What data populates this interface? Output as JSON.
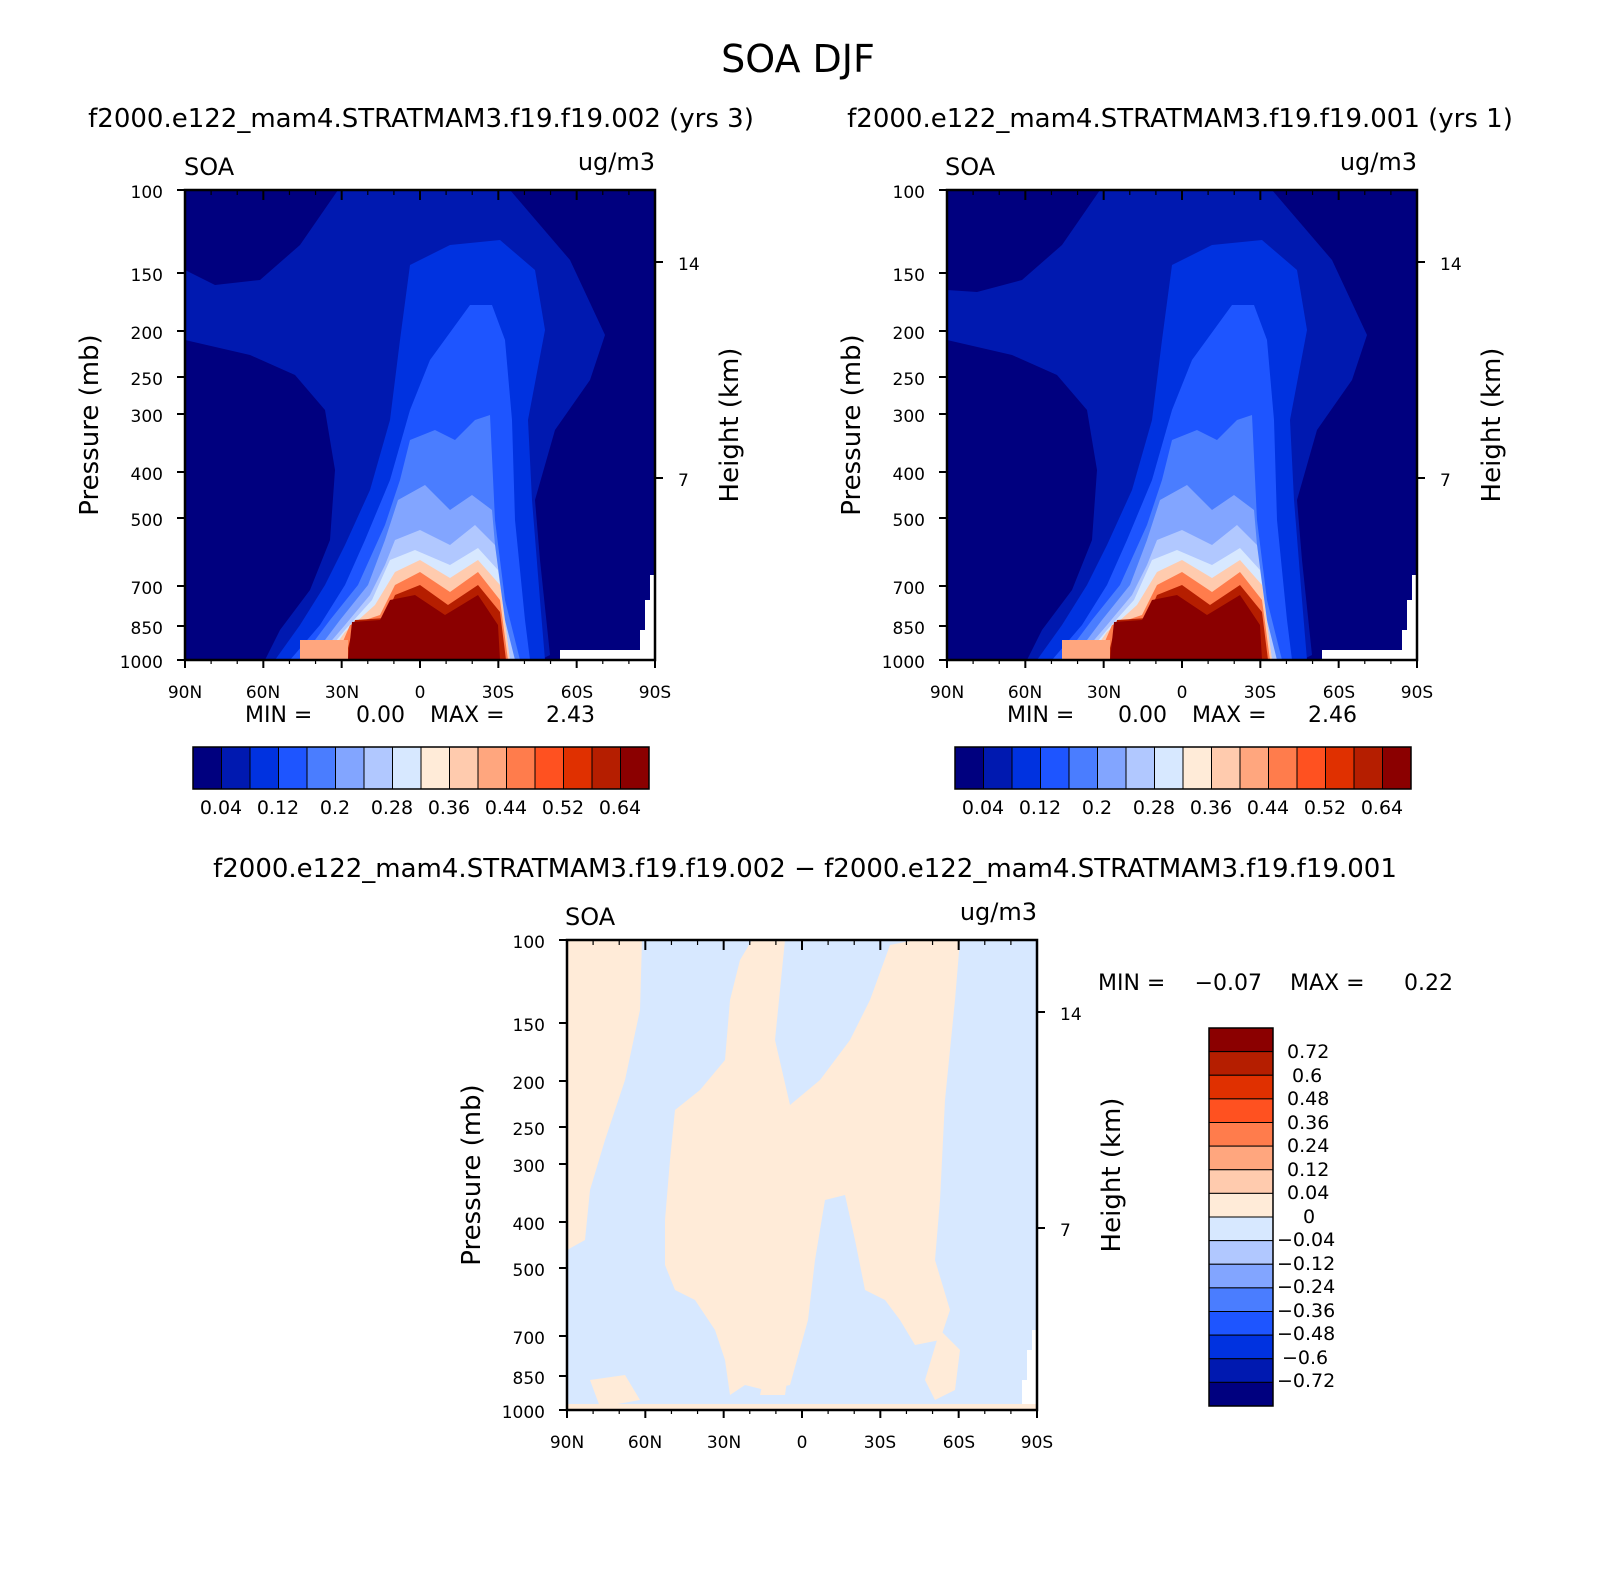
{
  "title": "SOA DJF",
  "colors": {
    "seq": [
      "#00007f",
      "#0019b0",
      "#0032e0",
      "#1e55ff",
      "#4a7dff",
      "#82a5ff",
      "#b1c8ff",
      "#d7e8ff",
      "#ffebd8",
      "#ffcbae",
      "#ffa67e",
      "#ff7c4c",
      "#ff5120",
      "#e03000",
      "#b51e00",
      "#8b0000"
    ],
    "diff": [
      "#00007f",
      "#0019b0",
      "#0032e0",
      "#1e55ff",
      "#4a7dff",
      "#82a5ff",
      "#b1c8ff",
      "#d7e8ff",
      "#ffebd8",
      "#ffcbae",
      "#ffa67e",
      "#ff7c4c",
      "#ff5120",
      "#e03000",
      "#b51e00",
      "#8b0000"
    ]
  },
  "chart_data": [
    {
      "type": "heatmap",
      "subtitle": "f2000.e122_mam4.STRATMAM3.f19.f19.002 (yrs 3)",
      "variable": "SOA",
      "units": "ug/m3",
      "xlabel": "",
      "ylabel": "Pressure (mb)",
      "y2label": "Height (km)",
      "x_ticks": [
        "90N",
        "60N",
        "30N",
        "0",
        "30S",
        "60S",
        "90S"
      ],
      "x_range": [
        90,
        -90
      ],
      "y_ticks": [
        100,
        150,
        200,
        250,
        300,
        400,
        500,
        700,
        850,
        1000
      ],
      "y_range": [
        1000,
        100
      ],
      "y2_ticks": [
        14,
        7
      ],
      "min_label": "MIN =",
      "min_value": "0.00",
      "max_label": "MAX =",
      "max_value": "2.43",
      "colorbar_labels": [
        "0.04",
        "0.12",
        "0.2",
        "0.28",
        "0.36",
        "0.44",
        "0.52",
        "0.64"
      ]
    },
    {
      "type": "heatmap",
      "subtitle": "f2000.e122_mam4.STRATMAM3.f19.f19.001 (yrs 1)",
      "variable": "SOA",
      "units": "ug/m3",
      "xlabel": "",
      "ylabel": "Pressure (mb)",
      "y2label": "Height (km)",
      "x_ticks": [
        "90N",
        "60N",
        "30N",
        "0",
        "30S",
        "60S",
        "90S"
      ],
      "x_range": [
        90,
        -90
      ],
      "y_ticks": [
        100,
        150,
        200,
        250,
        300,
        400,
        500,
        700,
        850,
        1000
      ],
      "y_range": [
        1000,
        100
      ],
      "y2_ticks": [
        14,
        7
      ],
      "min_label": "MIN =",
      "min_value": "0.00",
      "max_label": "MAX =",
      "max_value": "2.46",
      "colorbar_labels": [
        "0.04",
        "0.12",
        "0.2",
        "0.28",
        "0.36",
        "0.44",
        "0.52",
        "0.64"
      ]
    },
    {
      "type": "heatmap",
      "subtitle": "f2000.e122_mam4.STRATMAM3.f19.f19.002 − f2000.e122_mam4.STRATMAM3.f19.f19.001",
      "variable": "SOA",
      "units": "ug/m3",
      "xlabel": "",
      "ylabel": "Pressure (mb)",
      "y2label": "Height (km)",
      "x_ticks": [
        "90N",
        "60N",
        "30N",
        "0",
        "30S",
        "60S",
        "90S"
      ],
      "x_range": [
        90,
        -90
      ],
      "y_ticks": [
        100,
        150,
        200,
        250,
        300,
        400,
        500,
        700,
        850,
        1000
      ],
      "y_range": [
        1000,
        100
      ],
      "y2_ticks": [
        14,
        7
      ],
      "min_label": "MIN =",
      "min_value": "−0.07",
      "max_label": "MAX =",
      "max_value": "0.22",
      "colorbar_labels": [
        "0.72",
        "0.6",
        "0.48",
        "0.36",
        "0.24",
        "0.12",
        "0.04",
        "0",
        "−0.04",
        "−0.12",
        "−0.24",
        "−0.36",
        "−0.48",
        "−0.6",
        "−0.72"
      ]
    }
  ]
}
